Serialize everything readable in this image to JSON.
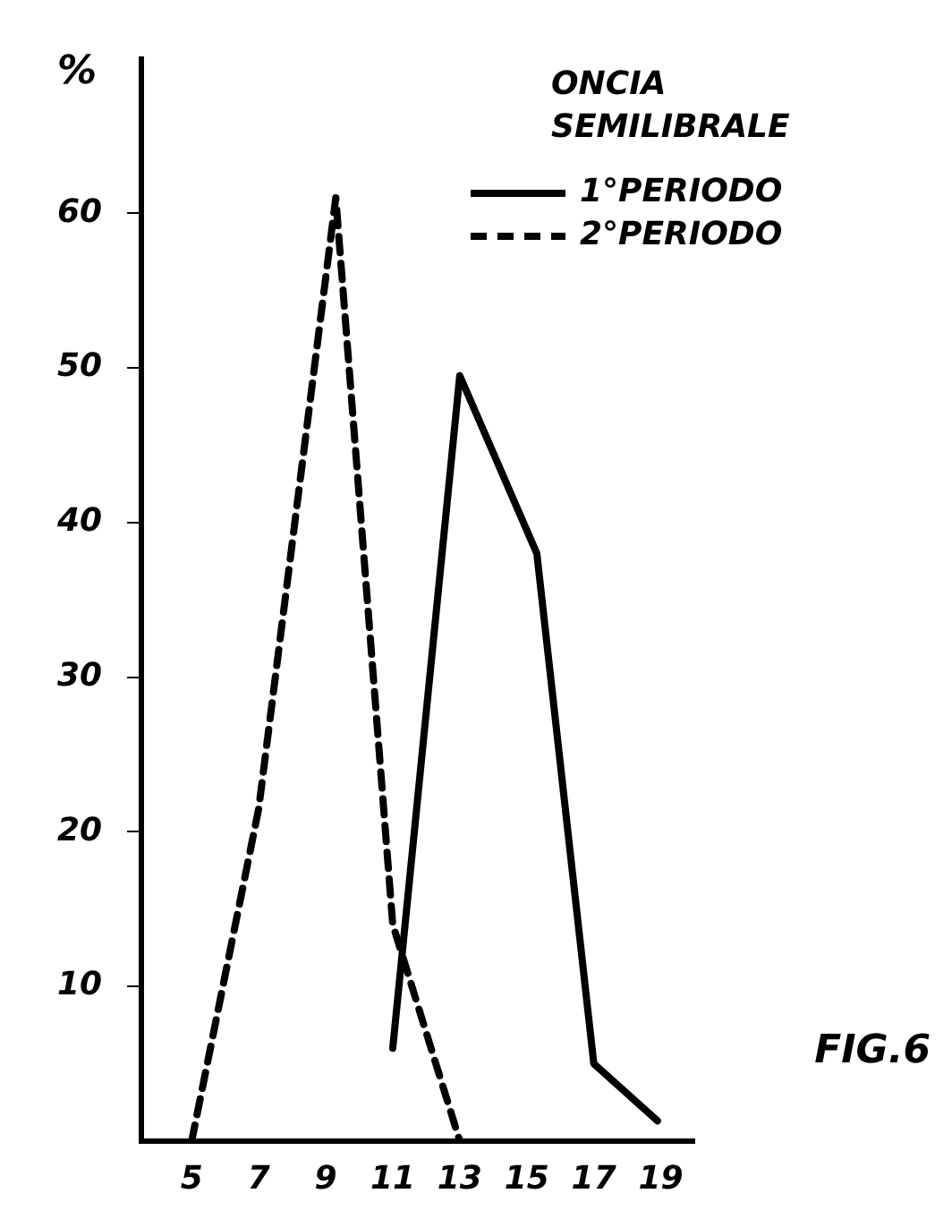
{
  "chart_data": {
    "type": "line",
    "ylabel": "%",
    "legend_title": "ONCIA SEMILIBRALE",
    "legend": "top right",
    "marker": "none",
    "grid": false,
    "xlim": [
      3.5,
      20
    ],
    "xticks": [
      5,
      7,
      9,
      11,
      13,
      15,
      17,
      19
    ],
    "ylim": [
      0,
      70
    ],
    "yticks": [
      10,
      20,
      30,
      40,
      50,
      60
    ],
    "series": [
      {
        "name": "1°PERIODO",
        "color": "#000000",
        "line_style": "solid",
        "x": [
          11,
          13,
          15.3,
          17,
          18.9
        ],
        "values": [
          6,
          49.5,
          38,
          5,
          1.3
        ]
      },
      {
        "name": "2°PERIODO",
        "color": "#000000",
        "line_style": "dashed",
        "x": [
          5,
          7,
          9.3,
          11,
          13
        ],
        "values": [
          0,
          21.5,
          61,
          14,
          0
        ]
      }
    ],
    "annotations": [
      "FIG.6"
    ]
  }
}
